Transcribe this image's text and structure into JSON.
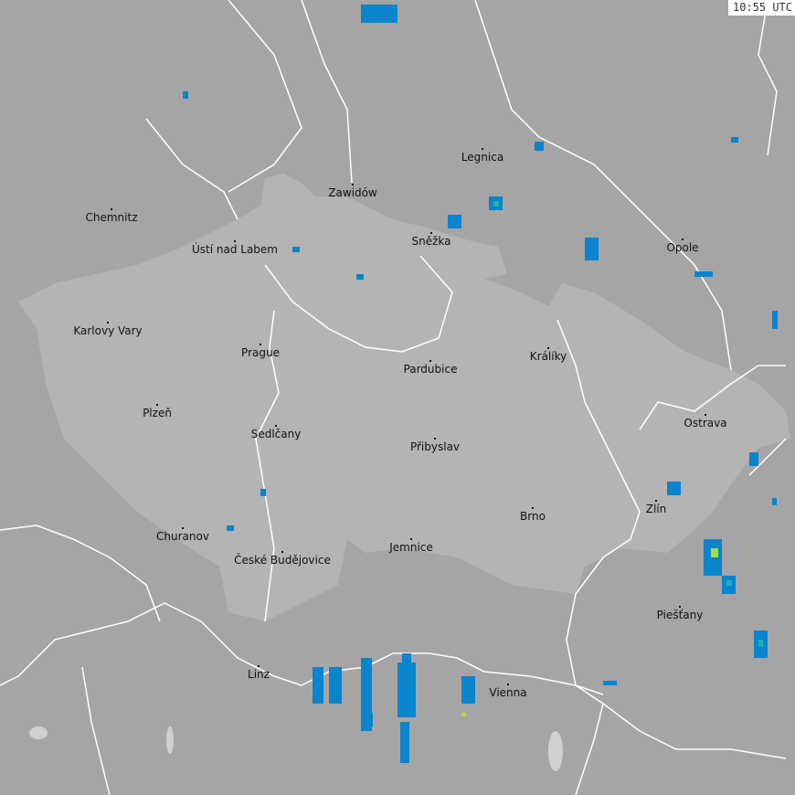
{
  "timestamp": "10:55 UTC",
  "colors": {
    "background": "#a5a5a5",
    "country_highlight": "#b4b4b4",
    "borders": "#ffffff",
    "radar_light": "#0a84cc",
    "radar_medium": "#18b4b0",
    "radar_heavy": "#a8e030"
  },
  "cities": [
    {
      "name": "Legnica",
      "dot": [
        528,
        163
      ]
    },
    {
      "name": "Zawidów",
      "dot": [
        386,
        202
      ]
    },
    {
      "name": "Chemnitz",
      "dot": [
        122,
        229
      ]
    },
    {
      "name": "Ústí nad Labem",
      "dot": [
        257,
        264
      ]
    },
    {
      "name": "Sněžka",
      "dot": [
        472,
        255
      ]
    },
    {
      "name": "Opole",
      "dot": [
        747,
        262
      ]
    },
    {
      "name": "Karlovy Vary",
      "dot": [
        118,
        353
      ]
    },
    {
      "name": "Prague",
      "dot": [
        285,
        377
      ]
    },
    {
      "name": "Pardubice",
      "dot": [
        471,
        395
      ]
    },
    {
      "name": "Králíky",
      "dot": [
        600,
        381
      ]
    },
    {
      "name": "Plzeň",
      "dot": [
        172,
        443
      ]
    },
    {
      "name": "Ostrava",
      "dot": [
        772,
        454
      ]
    },
    {
      "name": "Sedlčany",
      "dot": [
        302,
        466
      ]
    },
    {
      "name": "Přibyslav",
      "dot": [
        476,
        480
      ]
    },
    {
      "name": "Zlín",
      "dot": [
        718,
        548
      ]
    },
    {
      "name": "Brno",
      "dot": [
        583,
        556
      ]
    },
    {
      "name": "Churanov",
      "dot": [
        200,
        578
      ]
    },
    {
      "name": "Jemnice",
      "dot": [
        450,
        590
      ]
    },
    {
      "name": "České Budějovice",
      "dot": [
        309,
        604
      ]
    },
    {
      "name": "Piešťany",
      "dot": [
        744,
        664
      ]
    },
    {
      "name": "Linz",
      "dot": [
        283,
        729
      ]
    },
    {
      "name": "Vienna",
      "dot": [
        556,
        749
      ]
    }
  ]
}
